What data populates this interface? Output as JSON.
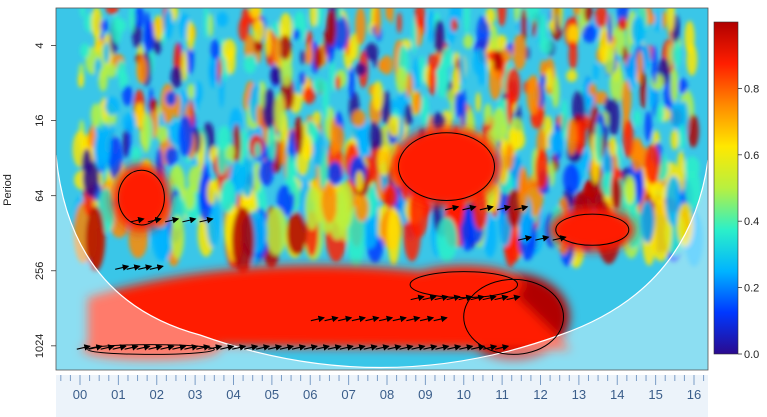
{
  "chart_data": {
    "type": "heatmap",
    "title": "",
    "xlabel": "",
    "ylabel": "Period",
    "y_scale": "log2",
    "y_ticks": [
      4,
      16,
      64,
      256,
      1024
    ],
    "y_tick_labels": [
      "4",
      "16",
      "64",
      "256",
      "1024"
    ],
    "ylim": [
      2,
      1600
    ],
    "x_tick_labels": [
      "00",
      "01",
      "02",
      "03",
      "04",
      "05",
      "06",
      "07",
      "08",
      "09",
      "10",
      "11",
      "12",
      "13",
      "14",
      "15",
      "16"
    ],
    "colorbar": {
      "ticks": [
        0.0,
        0.2,
        0.4,
        0.6,
        0.8
      ],
      "tick_labels": [
        "0.0",
        "0.2",
        "0.4",
        "0.6",
        "0.8"
      ],
      "range": [
        0,
        1
      ],
      "colors": [
        "#2a0a8e",
        "#0038ff",
        "#00b4ff",
        "#2cf0c8",
        "#b8f040",
        "#ffe800",
        "#ff8a00",
        "#ff1e00",
        "#b00000"
      ]
    },
    "significance_regions": [
      {
        "x": [
          10,
          12.6
        ],
        "y": [
          300,
          1200
        ],
        "level": 0.9
      },
      {
        "x": [
          8.6,
          11.4
        ],
        "y": [
          260,
          420
        ],
        "level": 0.85
      },
      {
        "x": [
          1,
          2.2
        ],
        "y": [
          40,
          110
        ],
        "level": 0.8
      },
      {
        "x": [
          0.2,
          3.5
        ],
        "y": [
          1000,
          1200
        ],
        "level": 0.85
      },
      {
        "x": [
          8.3,
          10.8
        ],
        "y": [
          20,
          70
        ],
        "level": 0.8
      },
      {
        "x": [
          12.4,
          14.3
        ],
        "y": [
          90,
          160
        ],
        "level": 0.8
      }
    ],
    "arrow_groups": [
      {
        "x_start": 0.1,
        "x_end": 11.0,
        "period": 1050,
        "count": 36
      },
      {
        "x_start": 6.2,
        "x_end": 9.4,
        "period": 620,
        "count": 10
      },
      {
        "x_start": 8.8,
        "x_end": 11.3,
        "period": 420,
        "count": 9
      },
      {
        "x_start": 1.1,
        "x_end": 2.0,
        "period": 240,
        "count": 4
      },
      {
        "x_start": 1.5,
        "x_end": 3.3,
        "period": 100,
        "count": 5
      },
      {
        "x_start": 9.7,
        "x_end": 11.5,
        "period": 80,
        "count": 5
      },
      {
        "x_start": 11.6,
        "x_end": 12.5,
        "period": 140,
        "count": 3
      }
    ]
  }
}
